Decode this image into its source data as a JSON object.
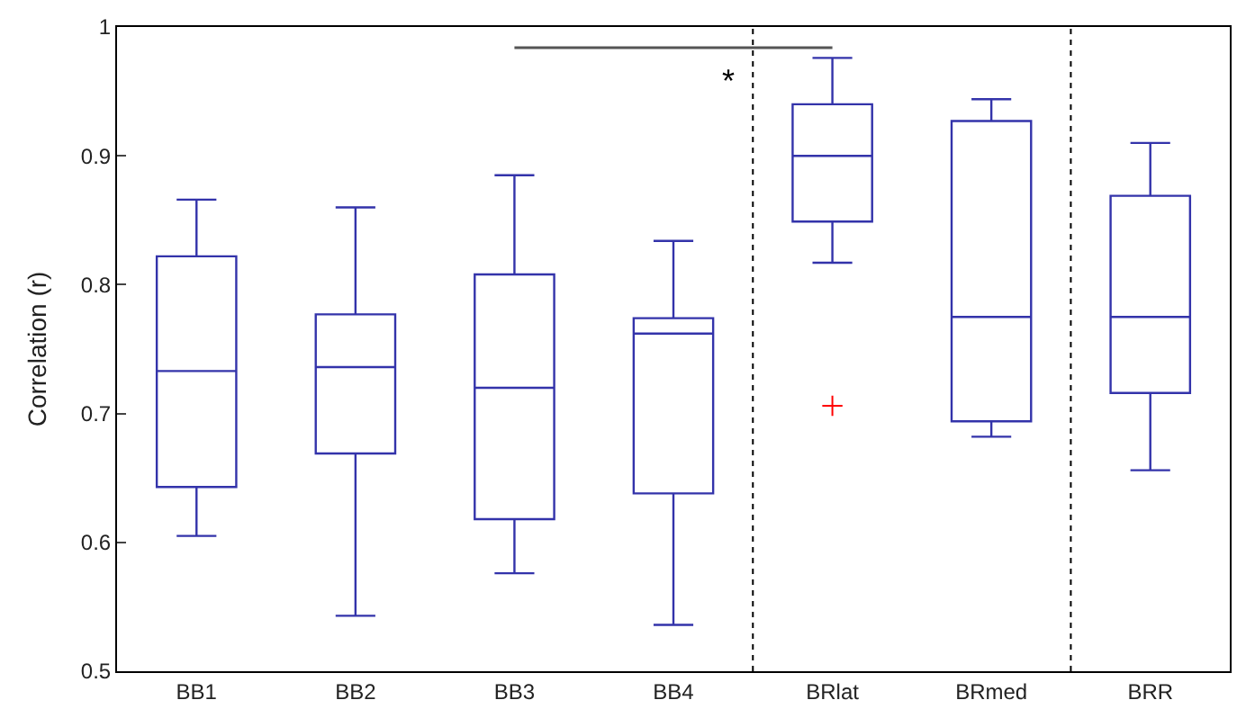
{
  "chart_data": {
    "type": "box",
    "ylabel": "Correlation (r)",
    "categories": [
      "BB1",
      "BB2",
      "BB3",
      "BB4",
      "BRlat",
      "BRmed",
      "BRR"
    ],
    "color": "#3333aa",
    "ylim": [
      0.5,
      1
    ],
    "yticks": [
      0.5,
      0.6,
      0.7,
      0.8,
      0.9,
      1
    ],
    "boxes": [
      {
        "low": 0.605,
        "q1": 0.643,
        "median": 0.733,
        "q3": 0.822,
        "high": 0.866
      },
      {
        "low": 0.543,
        "q1": 0.669,
        "median": 0.736,
        "q3": 0.777,
        "high": 0.86
      },
      {
        "low": 0.576,
        "q1": 0.618,
        "median": 0.72,
        "q3": 0.808,
        "high": 0.885
      },
      {
        "low": 0.536,
        "q1": 0.638,
        "median": 0.762,
        "q3": 0.774,
        "high": 0.834
      },
      {
        "low": 0.817,
        "q1": 0.849,
        "median": 0.9,
        "q3": 0.94,
        "high": 0.976,
        "outliers": [
          0.706
        ]
      },
      {
        "low": 0.682,
        "q1": 0.694,
        "median": 0.775,
        "q3": 0.927,
        "high": 0.944
      },
      {
        "low": 0.656,
        "q1": 0.716,
        "median": 0.775,
        "q3": 0.869,
        "high": 0.91
      }
    ],
    "annotations": [
      "*"
    ]
  }
}
